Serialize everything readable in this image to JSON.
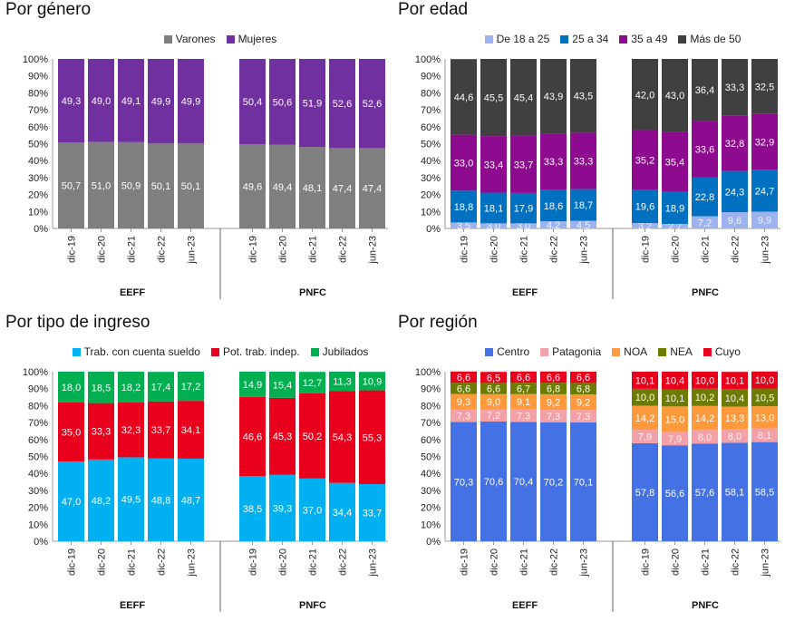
{
  "chart_data": [
    {
      "type": "bar",
      "stacked": true,
      "title": "Por género",
      "groups": [
        "EEFF",
        "PNFC"
      ],
      "categories": [
        "dic-19",
        "dic-20",
        "dic-21",
        "dic-22",
        "jun-23"
      ],
      "yticks": [
        "0%",
        "10%",
        "20%",
        "30%",
        "40%",
        "50%",
        "60%",
        "70%",
        "80%",
        "90%",
        "100%"
      ],
      "ylim": [
        0,
        100
      ],
      "legend_position": "top",
      "series": [
        {
          "name": "Varones",
          "color": "#7f7f7f",
          "values": [
            [
              50.7,
              51.0,
              50.9,
              50.1,
              50.1
            ],
            [
              49.6,
              49.4,
              48.1,
              47.4,
              47.4
            ]
          ],
          "labels": [
            [
              "50,7",
              "51,0",
              "50,9",
              "50,1",
              "50,1"
            ],
            [
              "49,6",
              "49,4",
              "48,1",
              "47,4",
              "47,4"
            ]
          ]
        },
        {
          "name": "Mujeres",
          "color": "#7030a0",
          "values": [
            [
              49.3,
              49.0,
              49.1,
              49.9,
              49.9
            ],
            [
              50.4,
              50.6,
              51.9,
              52.6,
              52.6
            ]
          ],
          "labels": [
            [
              "49,3",
              "49,0",
              "49,1",
              "49,9",
              "49,9"
            ],
            [
              "50,4",
              "50,6",
              "51,9",
              "52,6",
              "52,6"
            ]
          ]
        }
      ]
    },
    {
      "type": "bar",
      "stacked": true,
      "title": "Por edad",
      "groups": [
        "EEFF",
        "PNFC"
      ],
      "categories": [
        "dic-19",
        "dic-20",
        "dic-21",
        "dic-22",
        "jun-23"
      ],
      "yticks": [
        "0%",
        "10%",
        "20%",
        "30%",
        "40%",
        "50%",
        "60%",
        "70%",
        "80%",
        "90%",
        "100%"
      ],
      "ylim": [
        0,
        100
      ],
      "legend_position": "top",
      "series": [
        {
          "name": "De 18 a 25",
          "color": "#9db3f0",
          "values": [
            [
              3.5,
              3.0,
              3.0,
              4.2,
              4.5
            ],
            [
              3.2,
              2.7,
              7.2,
              9.6,
              9.9
            ]
          ],
          "labels": [
            [
              "3,5",
              "3,0",
              "3,0",
              "4,2",
              "4,5"
            ],
            [
              "3,2",
              "2,7",
              "7,2",
              "9,6",
              "9,9"
            ]
          ]
        },
        {
          "name": "25 a 34",
          "color": "#0070c0",
          "values": [
            [
              18.8,
              18.1,
              17.9,
              18.6,
              18.7
            ],
            [
              19.6,
              18.9,
              22.8,
              24.3,
              24.7
            ]
          ],
          "labels": [
            [
              "18,8",
              "18,1",
              "17,9",
              "18,6",
              "18,7"
            ],
            [
              "19,6",
              "18,9",
              "22,8",
              "24,3",
              "24,7"
            ]
          ]
        },
        {
          "name": "35 a 49",
          "color": "#8e0a8e",
          "values": [
            [
              33.0,
              33.4,
              33.7,
              33.3,
              33.3
            ],
            [
              35.2,
              35.4,
              33.6,
              32.8,
              32.9
            ]
          ],
          "labels": [
            [
              "33,0",
              "33,4",
              "33,7",
              "33,3",
              "33,3"
            ],
            [
              "35,2",
              "35,4",
              "33,6",
              "32,8",
              "32,9"
            ]
          ]
        },
        {
          "name": "Más de 50",
          "color": "#404040",
          "values": [
            [
              44.6,
              45.5,
              45.4,
              43.9,
              43.5
            ],
            [
              42.0,
              43.0,
              36.4,
              33.3,
              32.5
            ]
          ],
          "labels": [
            [
              "44,6",
              "45,5",
              "45,4",
              "43,9",
              "43,5"
            ],
            [
              "42,0",
              "43,0",
              "36,4",
              "33,3",
              "32,5"
            ]
          ]
        }
      ]
    },
    {
      "type": "bar",
      "stacked": true,
      "title": "Por tipo de ingreso",
      "groups": [
        "EEFF",
        "PNFC"
      ],
      "categories": [
        "dic-19",
        "dic-20",
        "dic-21",
        "dic-22",
        "jun-23"
      ],
      "yticks": [
        "0%",
        "10%",
        "20%",
        "30%",
        "40%",
        "50%",
        "60%",
        "70%",
        "80%",
        "90%",
        "100%"
      ],
      "ylim": [
        0,
        100
      ],
      "legend_position": "top",
      "series": [
        {
          "name": "Trab. con cuenta sueldo",
          "color": "#00b0f0",
          "values": [
            [
              47.0,
              48.2,
              49.5,
              48.8,
              48.7
            ],
            [
              38.5,
              39.3,
              37.0,
              34.4,
              33.7
            ]
          ],
          "labels": [
            [
              "47,0",
              "48,2",
              "49,5",
              "48,8",
              "48,7"
            ],
            [
              "38,5",
              "39,3",
              "37,0",
              "34,4",
              "33,7"
            ]
          ]
        },
        {
          "name": "Pot. trab. indep.",
          "color": "#e8001c",
          "values": [
            [
              35.0,
              33.3,
              32.3,
              33.7,
              34.1
            ],
            [
              46.6,
              45.3,
              50.2,
              54.3,
              55.3
            ]
          ],
          "labels": [
            [
              "35,0",
              "33,3",
              "32,3",
              "33,7",
              "34,1"
            ],
            [
              "46,6",
              "45,3",
              "50,2",
              "54,3",
              "55,3"
            ]
          ]
        },
        {
          "name": "Jubilados",
          "color": "#00b050",
          "values": [
            [
              18.0,
              18.5,
              18.2,
              17.4,
              17.2
            ],
            [
              14.9,
              15.4,
              12.7,
              11.3,
              10.9
            ]
          ],
          "labels": [
            [
              "18,0",
              "18,5",
              "18,2",
              "17,4",
              "17,2"
            ],
            [
              "14,9",
              "15,4",
              "12,7",
              "11,3",
              "10,9"
            ]
          ]
        }
      ]
    },
    {
      "type": "bar",
      "stacked": true,
      "title": "Por región",
      "groups": [
        "EEFF",
        "PNFC"
      ],
      "categories": [
        "dic-19",
        "dic-20",
        "dic-21",
        "dic-22",
        "jun-23"
      ],
      "yticks": [
        "0%",
        "10%",
        "20%",
        "30%",
        "40%",
        "50%",
        "60%",
        "70%",
        "80%",
        "90%",
        "100%"
      ],
      "ylim": [
        0,
        100
      ],
      "legend_position": "top",
      "series": [
        {
          "name": "Centro",
          "color": "#4472e4",
          "values": [
            [
              70.3,
              70.6,
              70.4,
              70.2,
              70.1
            ],
            [
              57.8,
              56.6,
              57.6,
              58.1,
              58.5
            ]
          ],
          "labels": [
            [
              "70,3",
              "70,6",
              "70,4",
              "70,2",
              "70,1"
            ],
            [
              "57,8",
              "56,6",
              "57,6",
              "58,1",
              "58,5"
            ]
          ]
        },
        {
          "name": "Patagonia",
          "color": "#f4a0a8",
          "values": [
            [
              7.3,
              7.2,
              7.3,
              7.3,
              7.3
            ],
            [
              7.9,
              7.9,
              8.0,
              8.0,
              8.1
            ]
          ],
          "labels": [
            [
              "7,3",
              "7,2",
              "7,3",
              "7,3",
              "7,3"
            ],
            [
              "7,9",
              "7,9",
              "8,0",
              "8,0",
              "8,1"
            ]
          ]
        },
        {
          "name": "NOA",
          "color": "#ff9a3c",
          "values": [
            [
              9.3,
              9.0,
              9.1,
              9.2,
              9.2
            ],
            [
              14.2,
              15.0,
              14.2,
              13.3,
              13.0
            ]
          ],
          "labels": [
            [
              "9,3",
              "9,0",
              "9,1",
              "9,2",
              "9,2"
            ],
            [
              "14,2",
              "15,0",
              "14,2",
              "13,3",
              "13,0"
            ]
          ]
        },
        {
          "name": "NEA",
          "color": "#6b7c00",
          "values": [
            [
              6.6,
              6.6,
              6.7,
              6.8,
              6.8
            ],
            [
              10.0,
              10.1,
              10.2,
              10.4,
              10.5
            ]
          ],
          "labels": [
            [
              "6,6",
              "6,6",
              "6,7",
              "6,8",
              "6,8"
            ],
            [
              "10,0",
              "10,1",
              "10,2",
              "10,4",
              "10,5"
            ]
          ]
        },
        {
          "name": "Cuyo",
          "color": "#e8001c",
          "values": [
            [
              6.6,
              6.5,
              6.6,
              6.6,
              6.6
            ],
            [
              10.1,
              10.4,
              10.0,
              10.1,
              10.0
            ]
          ],
          "labels": [
            [
              "6,6",
              "6,5",
              "6,6",
              "6,6",
              "6,6"
            ],
            [
              "10,1",
              "10,4",
              "10,0",
              "10,1",
              "10,0"
            ]
          ]
        }
      ]
    }
  ]
}
